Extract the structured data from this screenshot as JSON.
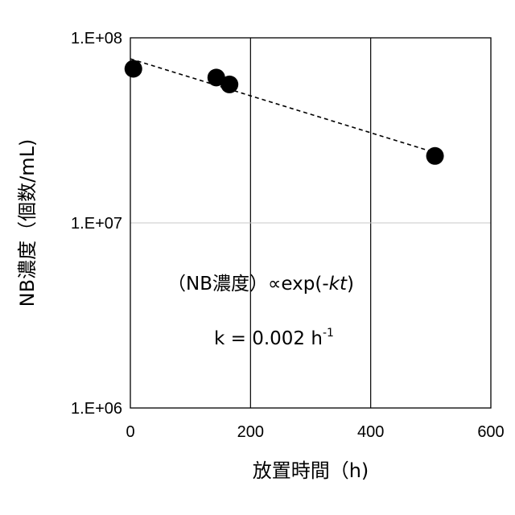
{
  "chart_data": {
    "type": "scatter",
    "xlabel": "放置時間（h)",
    "ylabel": "NB濃度（個数/mL)",
    "x_ticks": [
      "0",
      "200",
      "400",
      "600"
    ],
    "y_ticks": [
      "1.E+06",
      "1.E+07",
      "1.E+08"
    ],
    "xlim": [
      0,
      600
    ],
    "ylim": [
      1000000,
      100000000
    ],
    "y_scale": "log",
    "grid": true,
    "series": [
      {
        "x": [
          5,
          143,
          165,
          507
        ],
        "y": [
          68000000,
          61000000,
          56000000,
          23000000
        ],
        "marker_color": "#000000"
      }
    ],
    "trendline": {
      "style": "dashed",
      "type": "exponential",
      "x_start": 0,
      "x_end": 507,
      "y_start": 77000000,
      "y_end": 24000000
    },
    "annotations": {
      "equation": {
        "open_paren": "（",
        "name": "NB濃度",
        "close_paren": "）",
        "proportional": "∝exp(-",
        "k": "k",
        "t": "t",
        "close": ")"
      },
      "rate": {
        "text": "k = 0.002 h",
        "superscript": "-1"
      }
    }
  }
}
